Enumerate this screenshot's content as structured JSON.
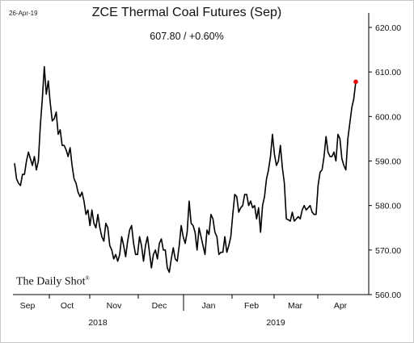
{
  "date_stamp": "26-Apr-19",
  "watermark": {
    "text": "The Daily Shot",
    "mark": "®"
  },
  "chart_data": {
    "type": "line",
    "title": "ZCE Thermal Coal Futures (Sep)",
    "subtitle": "607.80  /  +0.60%",
    "xlabel": "",
    "ylabel": "",
    "ylim": [
      560,
      620
    ],
    "yticks": [
      "620.00",
      "610.00",
      "600.00",
      "590.00",
      "580.00",
      "570.00",
      "560.00"
    ],
    "x_month_labels": [
      "Sep",
      "Oct",
      "Nov",
      "Dec",
      "Jan",
      "Feb",
      "Mar",
      "Apr"
    ],
    "x_year_labels": [
      "2018",
      "2019"
    ],
    "grid": false,
    "line_color": "#000000",
    "last_point_color": "#e8000b",
    "last_value": 607.8,
    "series": [
      {
        "values": [
          589.5,
          586,
          585,
          584.5,
          587,
          587,
          590,
          592,
          590.5,
          589,
          591,
          588,
          590,
          598,
          604,
          611.2,
          605,
          608,
          603,
          599,
          599.5,
          601,
          596,
          597,
          593.5,
          593.5,
          592.5,
          591,
          593,
          589,
          586,
          585,
          583,
          582,
          583,
          581,
          578,
          579,
          575.5,
          579,
          576,
          575,
          578,
          575,
          573,
          572,
          576,
          575,
          571,
          570,
          568,
          569,
          567.5,
          569,
          573,
          571,
          568.5,
          572,
          574.5,
          575.5,
          571.5,
          569,
          569,
          573,
          571,
          567.5,
          571,
          573,
          569.5,
          566,
          569,
          570,
          568,
          571.5,
          572.5,
          570,
          570,
          566,
          565,
          568,
          570.5,
          568,
          567.5,
          571,
          575.5,
          573,
          571.5,
          574,
          581,
          576,
          575.5,
          574,
          570,
          575,
          573,
          571,
          569,
          574.5,
          573.5,
          578,
          577,
          574,
          573,
          569,
          569.5,
          569.5,
          573,
          569.5,
          571,
          573,
          578,
          582.5,
          582,
          578.5,
          579.5,
          580,
          582.5,
          582.5,
          580,
          581,
          579.5,
          580,
          577,
          579.5,
          574,
          580,
          582,
          586,
          588,
          591,
          596,
          591.5,
          589,
          590,
          593.5,
          588.5,
          585,
          577,
          576.8,
          576.5,
          578.5,
          576.5,
          577,
          577.5,
          577,
          579,
          580,
          579,
          579.5,
          580,
          578.5,
          578,
          578,
          584.5,
          587.5,
          588,
          591,
          595.5,
          592,
          591,
          591,
          592,
          590,
          596,
          595,
          590.5,
          589,
          588,
          595,
          598.5,
          602,
          604,
          607.8
        ]
      }
    ]
  }
}
